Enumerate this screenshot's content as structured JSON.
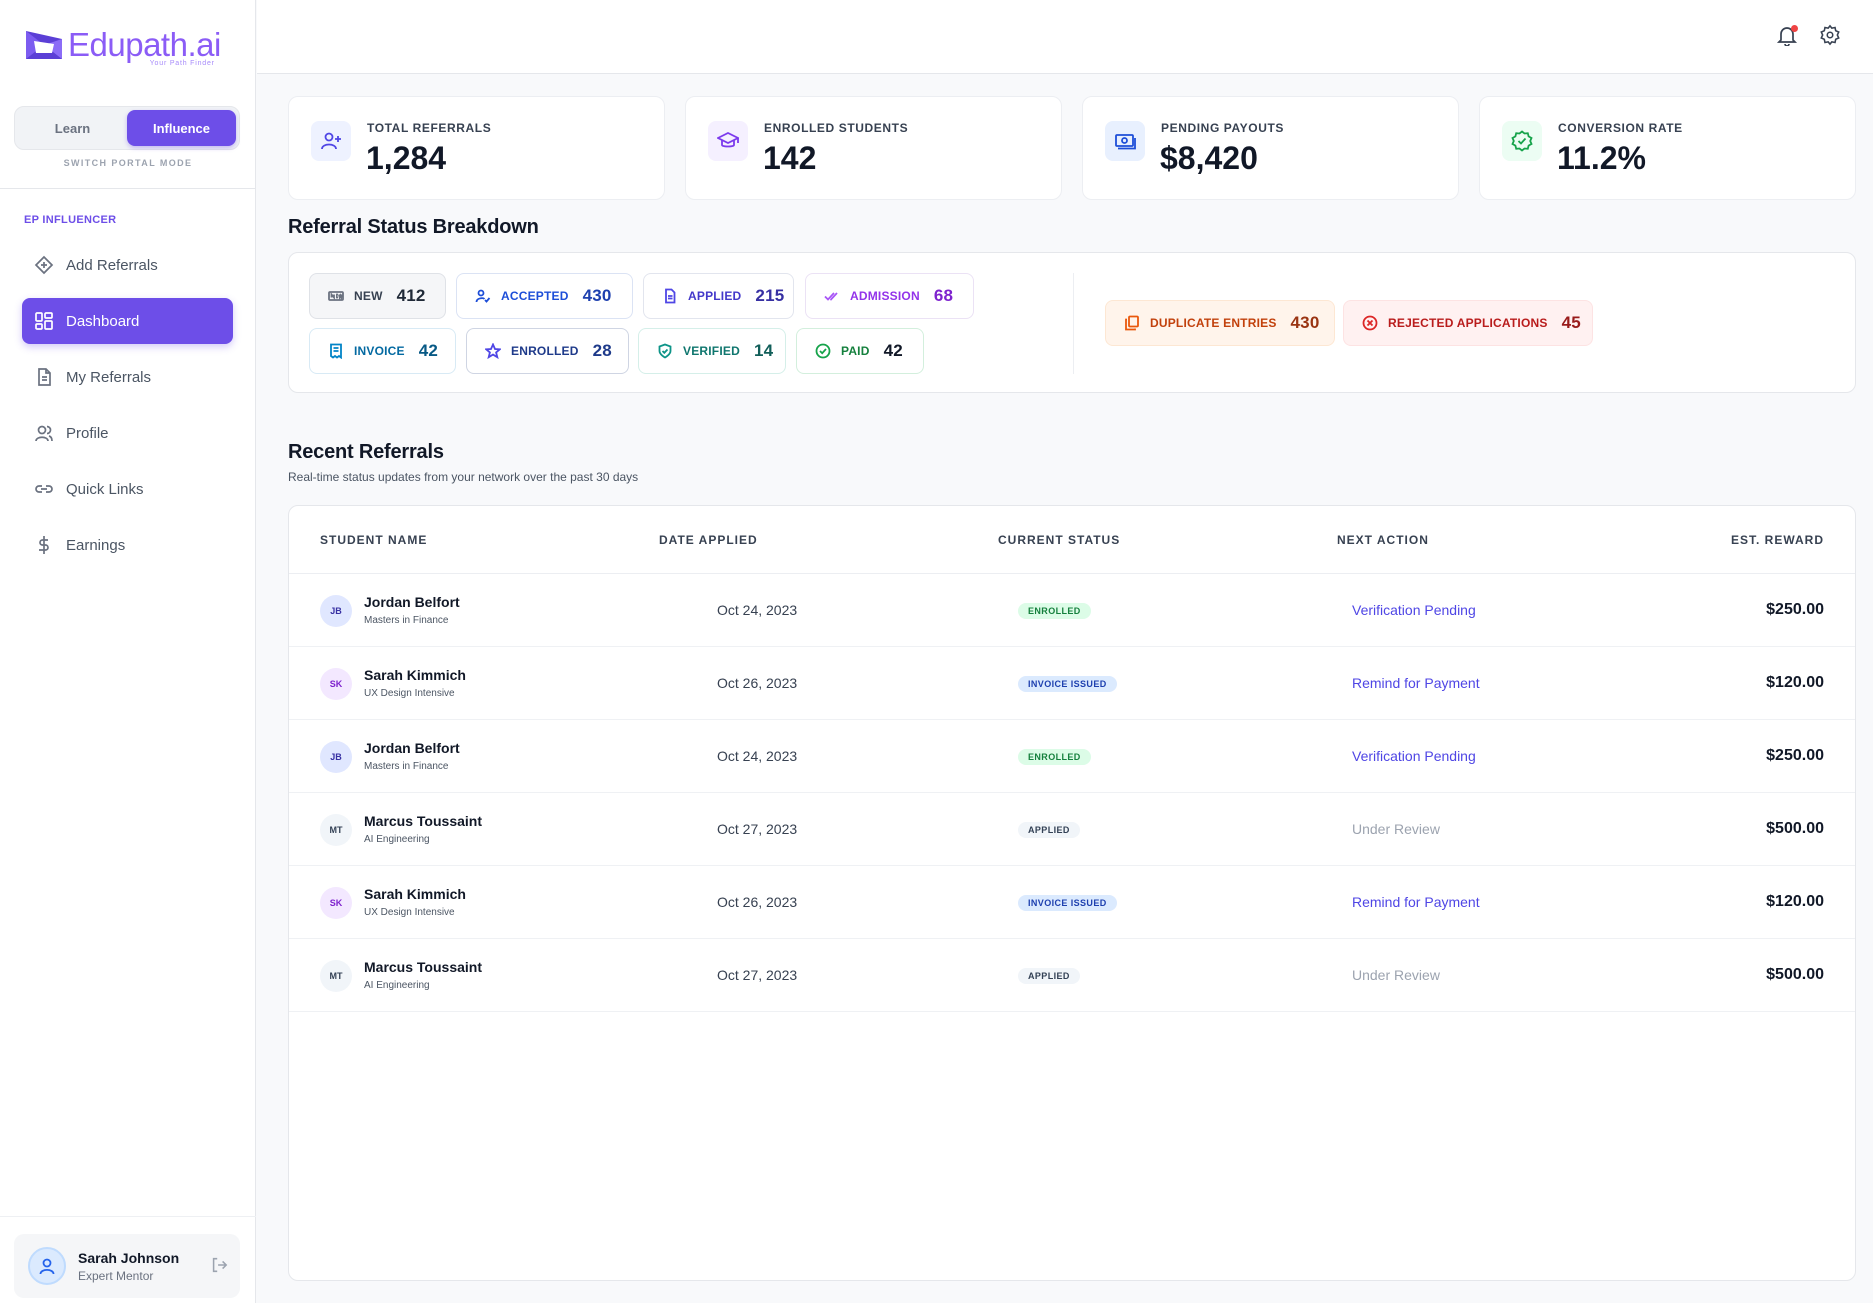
{
  "brand": {
    "name": "Edupath.ai",
    "tagline": "Your Path Finder"
  },
  "mode_switch": {
    "options": [
      "Learn",
      "Influence"
    ],
    "active": "Influence",
    "caption": "SWITCH PORTAL MODE"
  },
  "sidebar": {
    "section_label": "EP INFLUENCER",
    "items": [
      {
        "label": "Add Referrals",
        "icon": "add-diamond-icon",
        "active": false
      },
      {
        "label": "Dashboard",
        "icon": "dashboard-grid-icon",
        "active": true
      },
      {
        "label": "My Referrals",
        "icon": "document-icon",
        "active": false
      },
      {
        "label": "Profile",
        "icon": "users-icon",
        "active": false
      },
      {
        "label": "Quick Links",
        "icon": "link-icon",
        "active": false
      },
      {
        "label": "Earnings",
        "icon": "dollar-icon",
        "active": false
      }
    ]
  },
  "user": {
    "name": "Sarah Johnson",
    "role": "Expert Mentor"
  },
  "topbar": {
    "icons": [
      "bell-icon",
      "gear-icon"
    ],
    "has_notification": true
  },
  "stats": [
    {
      "label": "TOTAL REFERRALS",
      "value": "1,284",
      "icon": "user-plus-icon"
    },
    {
      "label": "ENROLLED STUDENTS",
      "value": "142",
      "icon": "graduation-cap-icon"
    },
    {
      "label": "PENDING PAYOUTS",
      "value": "$8,420",
      "icon": "banknote-icon"
    },
    {
      "label": "CONVERSION RATE",
      "value": "11.2%",
      "icon": "verified-badge-icon"
    }
  ],
  "breakdown": {
    "title": "Referral Status Breakdown",
    "chips": [
      {
        "label": "NEW",
        "count": "412",
        "icon": "new-tag-icon"
      },
      {
        "label": "ACCEPTED",
        "count": "430",
        "icon": "user-check-icon"
      },
      {
        "label": "APPLIED",
        "count": "215",
        "icon": "file-icon"
      },
      {
        "label": "ADMISSION",
        "count": "68",
        "icon": "double-check-icon"
      },
      {
        "label": "INVOICE",
        "count": "42",
        "icon": "receipt-icon"
      },
      {
        "label": "ENROLLED",
        "count": "28",
        "icon": "star-icon"
      },
      {
        "label": "VERIFIED",
        "count": "14",
        "icon": "shield-check-icon"
      },
      {
        "label": "PAID",
        "count": "42",
        "icon": "check-circle-icon"
      }
    ],
    "alerts": [
      {
        "label": "DUPLICATE ENTRIES",
        "count": "430",
        "icon": "copy-icon"
      },
      {
        "label": "REJECTED APPLICATIONS",
        "count": "45",
        "icon": "x-circle-icon"
      }
    ]
  },
  "recent": {
    "title": "Recent Referrals",
    "subtitle": "Real-time status updates from your network over the past 30 days",
    "columns": [
      "STUDENT NAME",
      "DATE APPLIED",
      "CURRENT STATUS",
      "NEXT ACTION",
      "EST. REWARD"
    ],
    "rows": [
      {
        "initials": "JB",
        "name": "Jordan Belfort",
        "program": "Masters in Finance",
        "date": "Oct 24, 2023",
        "status": "ENROLLED",
        "action": "Verification Pending",
        "reward": "$250.00"
      },
      {
        "initials": "SK",
        "name": "Sarah Kimmich",
        "program": "UX Design Intensive",
        "date": "Oct 26, 2023",
        "status": "INVOICE ISSUED",
        "action": "Remind for Payment",
        "reward": "$120.00"
      },
      {
        "initials": "JB",
        "name": "Jordan Belfort",
        "program": "Masters in Finance",
        "date": "Oct 24, 2023",
        "status": "ENROLLED",
        "action": "Verification Pending",
        "reward": "$250.00"
      },
      {
        "initials": "MT",
        "name": "Marcus Toussaint",
        "program": "AI Engineering",
        "date": "Oct 27, 2023",
        "status": "APPLIED",
        "action": "Under Review",
        "reward": "$500.00"
      },
      {
        "initials": "SK",
        "name": "Sarah Kimmich",
        "program": "UX Design Intensive",
        "date": "Oct 26, 2023",
        "status": "INVOICE ISSUED",
        "action": "Remind for Payment",
        "reward": "$120.00"
      },
      {
        "initials": "MT",
        "name": "Marcus Toussaint",
        "program": "AI Engineering",
        "date": "Oct 27, 2023",
        "status": "APPLIED",
        "action": "Under Review",
        "reward": "$500.00"
      }
    ]
  },
  "colors": {
    "accent": "#6d4ee8",
    "brand": "#8b5cf6",
    "link": "#4f46e5",
    "muted_action": "#9ca3af",
    "enrolled_badge_bg": "#dcfce7",
    "enrolled_badge_text": "#15803d",
    "invoice_badge_bg": "#dbeafe",
    "invoice_badge_text": "#1e40af",
    "applied_badge_bg": "#f1f5f9",
    "applied_badge_text": "#334155"
  }
}
